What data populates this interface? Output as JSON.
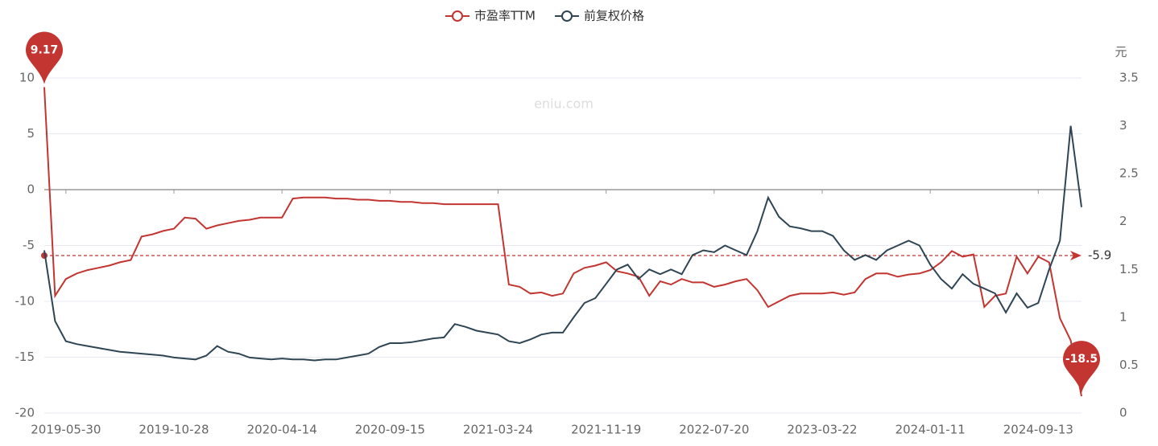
{
  "chart_data": {
    "type": "line",
    "watermark": "eniu.com",
    "y2_label": "元",
    "categories": [
      null,
      null,
      "2019-05-30",
      null,
      null,
      null,
      null,
      null,
      null,
      null,
      null,
      null,
      "2019-10-28",
      null,
      null,
      null,
      null,
      null,
      null,
      null,
      null,
      null,
      "2020-04-14",
      null,
      null,
      null,
      null,
      null,
      null,
      null,
      null,
      null,
      "2020-09-15",
      null,
      null,
      null,
      null,
      null,
      null,
      null,
      null,
      null,
      "2021-03-24",
      null,
      null,
      null,
      null,
      null,
      null,
      null,
      null,
      null,
      "2021-11-19",
      null,
      null,
      null,
      null,
      null,
      null,
      null,
      null,
      null,
      "2022-07-20",
      null,
      null,
      null,
      null,
      null,
      null,
      null,
      null,
      null,
      "2023-03-22",
      null,
      null,
      null,
      null,
      null,
      null,
      null,
      null,
      null,
      "2024-01-11",
      null,
      null,
      null,
      null,
      null,
      null,
      null,
      null,
      null,
      "2024-09-13",
      null,
      null,
      null,
      null
    ],
    "series": [
      {
        "name": "市盈率TTM",
        "color": "#c23531",
        "axis": "y",
        "values": [
          9.17,
          -9.5,
          -8,
          -7.5,
          -7.2,
          -7.0,
          -6.8,
          -6.5,
          -6.3,
          -4.2,
          -4.0,
          -3.7,
          -3.5,
          -2.5,
          -2.6,
          -3.5,
          -3.2,
          -3.0,
          -2.8,
          -2.7,
          -2.5,
          -2.5,
          -2.5,
          -0.8,
          -0.7,
          -0.7,
          -0.7,
          -0.8,
          -0.8,
          -0.9,
          -0.9,
          -1.0,
          -1.0,
          -1.1,
          -1.1,
          -1.2,
          -1.2,
          -1.3,
          -1.3,
          -1.3,
          -1.3,
          -1.3,
          -1.3,
          -8.5,
          -8.7,
          -9.3,
          -9.2,
          -9.5,
          -9.3,
          -7.5,
          -7.0,
          -6.8,
          -6.5,
          -7.3,
          -7.5,
          -7.8,
          -9.5,
          -8.2,
          -8.5,
          -8.0,
          -8.3,
          -8.3,
          -8.7,
          -8.5,
          -8.2,
          -8.0,
          -9.0,
          -10.5,
          -10.0,
          -9.5,
          -9.3,
          -9.3,
          -9.3,
          -9.2,
          -9.4,
          -9.2,
          -8.0,
          -7.5,
          -7.5,
          -7.8,
          -7.6,
          -7.5,
          -7.2,
          -6.5,
          -5.5,
          -6.0,
          -5.8,
          -10.5,
          -9.5,
          -9.3,
          -6.0,
          -7.5,
          -6.0,
          -6.5,
          -11.5,
          -13.5,
          -18.5
        ],
        "mark_line": -5.9
      },
      {
        "name": "前复权价格",
        "color": "#2f4554",
        "axis": "y2",
        "values": [
          1.7,
          0.96,
          0.75,
          0.72,
          0.7,
          0.68,
          0.66,
          0.64,
          0.63,
          0.62,
          0.61,
          0.6,
          0.58,
          0.57,
          0.56,
          0.6,
          0.7,
          0.64,
          0.62,
          0.58,
          0.57,
          0.56,
          0.57,
          0.56,
          0.56,
          0.55,
          0.56,
          0.56,
          0.58,
          0.6,
          0.62,
          0.69,
          0.73,
          0.73,
          0.74,
          0.76,
          0.78,
          0.79,
          0.93,
          0.9,
          0.86,
          0.84,
          0.82,
          0.75,
          0.73,
          0.77,
          0.82,
          0.84,
          0.84,
          1.0,
          1.15,
          1.2,
          1.35,
          1.5,
          1.55,
          1.4,
          1.5,
          1.45,
          1.5,
          1.45,
          1.65,
          1.7,
          1.68,
          1.75,
          1.7,
          1.65,
          1.9,
          2.25,
          2.05,
          1.95,
          1.93,
          1.9,
          1.9,
          1.85,
          1.7,
          1.6,
          1.65,
          1.6,
          1.7,
          1.75,
          1.8,
          1.75,
          1.55,
          1.4,
          1.3,
          1.45,
          1.35,
          1.3,
          1.25,
          1.05,
          1.25,
          1.1,
          1.15,
          1.5,
          1.8,
          3.0,
          2.15
        ]
      }
    ],
    "ylim": [
      -20,
      10
    ],
    "yticks": [
      -20,
      -15,
      -10,
      -5,
      0,
      5,
      10
    ],
    "y2lim": [
      0,
      3.5
    ],
    "y2ticks": [
      0,
      0.5,
      1,
      1.5,
      2,
      2.5,
      3,
      3.5
    ],
    "grid": true,
    "legend": "top"
  }
}
